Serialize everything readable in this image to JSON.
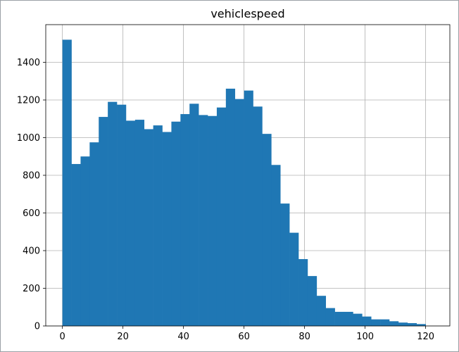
{
  "chart_data": {
    "type": "bar",
    "title": "vehiclespeed",
    "xlabel": "",
    "ylabel": "",
    "xlim": [
      -5.5,
      128
    ],
    "ylim": [
      0,
      1600
    ],
    "grid": true,
    "color": "#1f77b4",
    "bin_start": 0,
    "bin_width": 3,
    "xticks": [
      0,
      20,
      40,
      60,
      80,
      100,
      120
    ],
    "yticks": [
      0,
      200,
      400,
      600,
      800,
      1000,
      1200,
      1400
    ],
    "values": [
      1520,
      860,
      900,
      975,
      1110,
      1190,
      1175,
      1090,
      1095,
      1045,
      1065,
      1030,
      1085,
      1125,
      1180,
      1120,
      1115,
      1160,
      1260,
      1205,
      1250,
      1165,
      1020,
      855,
      650,
      495,
      355,
      265,
      160,
      95,
      75,
      75,
      65,
      50,
      35,
      35,
      25,
      18,
      15,
      10
    ]
  }
}
